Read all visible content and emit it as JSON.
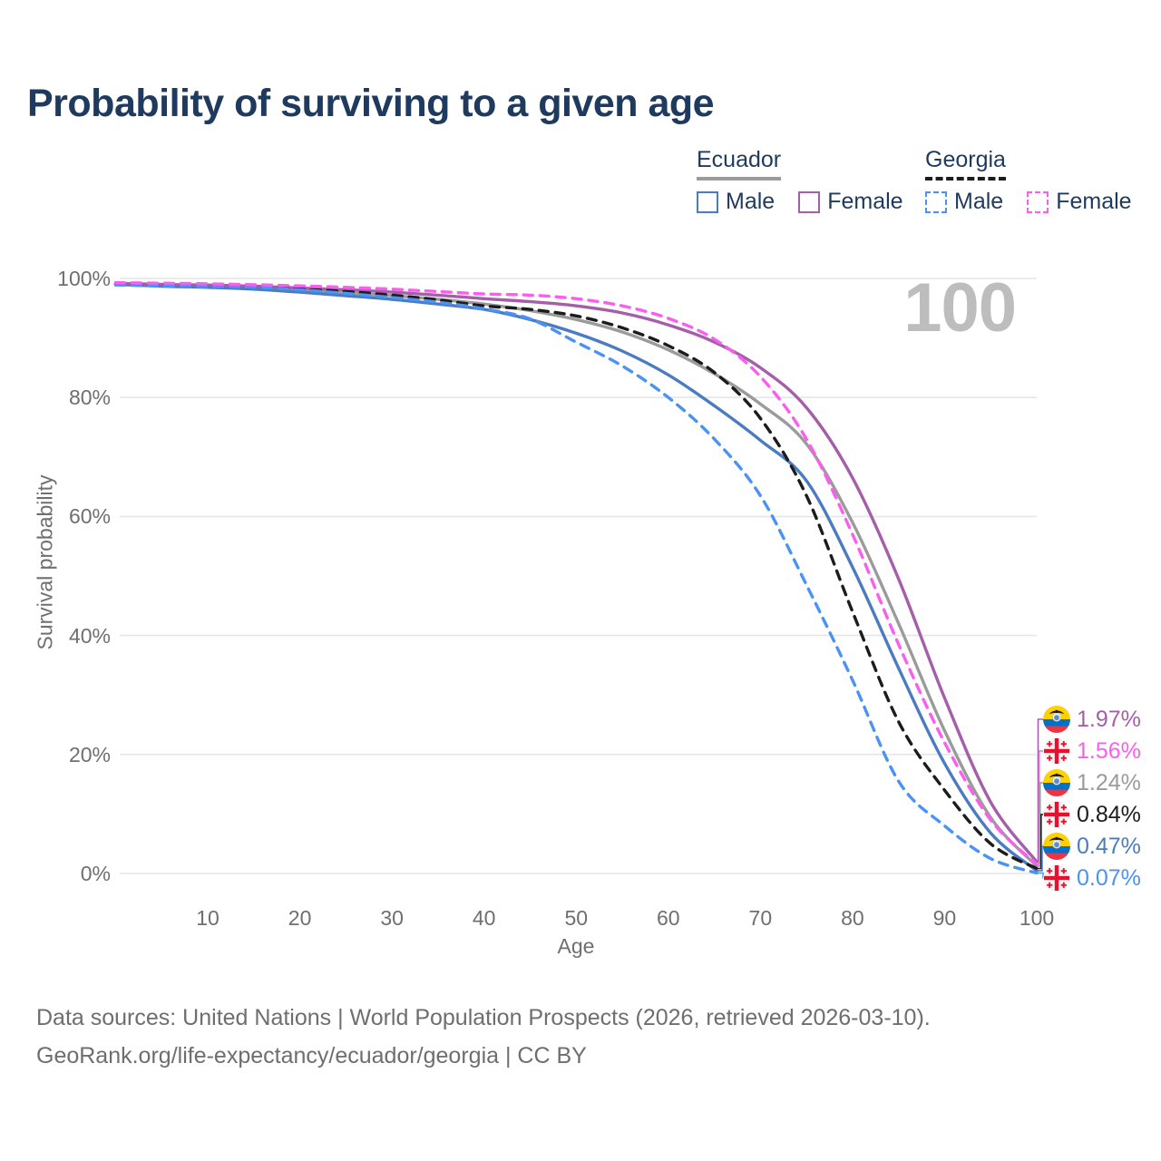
{
  "title": "Probability of surviving to a given age",
  "watermark": "100",
  "legend": {
    "groups": [
      {
        "id": "ecuador",
        "label": "Ecuador",
        "underline_color": "#9b9b9b",
        "underline_style": "solid",
        "items": [
          {
            "label": "Male",
            "color": "#4b7bc0",
            "dashed": false
          },
          {
            "label": "Female",
            "color": "#a55fa8",
            "dashed": false
          }
        ]
      },
      {
        "id": "georgia",
        "label": "Georgia",
        "underline_color": "#1c1c1c",
        "underline_style": "dashed",
        "items": [
          {
            "label": "Male",
            "color": "#4b92f5",
            "dashed": true
          },
          {
            "label": "Female",
            "color": "#fb5dee",
            "dashed": true
          }
        ]
      }
    ]
  },
  "end_labels": [
    {
      "series_id": "ec-female",
      "flag": "ecuador-flag",
      "value": "1.97%",
      "color": "#a55fa8"
    },
    {
      "series_id": "ge-female",
      "flag": "georgia-flag",
      "value": "1.56%",
      "color": "#fb5dee"
    },
    {
      "series_id": "ec-both",
      "flag": "ecuador-flag",
      "value": "1.24%",
      "color": "#9b9b9b"
    },
    {
      "series_id": "ge-both",
      "flag": "georgia-flag",
      "value": "0.84%",
      "color": "#1c1c1c"
    },
    {
      "series_id": "ec-male",
      "flag": "ecuador-flag",
      "value": "0.47%",
      "color": "#4b7bc0"
    },
    {
      "series_id": "ge-male",
      "flag": "georgia-flag",
      "value": "0.07%",
      "color": "#4b92f5"
    }
  ],
  "footer": {
    "line1": "Data sources: United Nations | World Population Prospects (2026, retrieved 2026-03-10).",
    "line2": "GeoRank.org/life-expectancy/ecuador/georgia | CC BY"
  },
  "chart_data": {
    "type": "line",
    "title": "Probability of surviving to a given age",
    "xlabel": "Age",
    "ylabel": "Survival probability",
    "xlim": [
      0,
      100
    ],
    "ylim": [
      0,
      100
    ],
    "grid": "horizontal",
    "y_ticks": [
      {
        "value": 0,
        "label": "0%"
      },
      {
        "value": 20,
        "label": "20%"
      },
      {
        "value": 40,
        "label": "40%"
      },
      {
        "value": 60,
        "label": "60%"
      },
      {
        "value": 80,
        "label": "80%"
      },
      {
        "value": 100,
        "label": "100%"
      }
    ],
    "x_ticks": [
      {
        "value": 10,
        "label": "10"
      },
      {
        "value": 20,
        "label": "20"
      },
      {
        "value": 30,
        "label": "30"
      },
      {
        "value": 40,
        "label": "40"
      },
      {
        "value": 50,
        "label": "50"
      },
      {
        "value": 60,
        "label": "60"
      },
      {
        "value": 70,
        "label": "70"
      },
      {
        "value": 80,
        "label": "80"
      },
      {
        "value": 90,
        "label": "90"
      },
      {
        "value": 100,
        "label": "100"
      }
    ],
    "x": [
      0,
      5,
      10,
      15,
      20,
      25,
      30,
      35,
      40,
      45,
      50,
      55,
      60,
      65,
      70,
      75,
      80,
      85,
      90,
      95,
      100
    ],
    "series": [
      {
        "id": "ec-both",
        "name": "Ecuador Both sexes",
        "country": "Ecuador",
        "sex": "Both",
        "color": "#9b9b9b",
        "dashed": false,
        "values": [
          99.1,
          98.85,
          98.7,
          98.45,
          98.05,
          97.6,
          97.1,
          96.5,
          95.7,
          94.6,
          93.1,
          91.0,
          88.0,
          84.0,
          78.9,
          72.2,
          59.0,
          42.0,
          24.0,
          9.4,
          1.24
        ]
      },
      {
        "id": "ec-male",
        "name": "Ecuador Male",
        "country": "Ecuador",
        "sex": "Male",
        "color": "#4b7bc0",
        "dashed": false,
        "values": [
          99.0,
          98.7,
          98.5,
          98.2,
          97.7,
          97.1,
          96.5,
          95.7,
          94.8,
          93.1,
          90.8,
          87.8,
          83.8,
          78.6,
          72.8,
          66.0,
          51.5,
          34.5,
          18.5,
          6.8,
          0.47
        ]
      },
      {
        "id": "ec-female",
        "name": "Ecuador Female",
        "country": "Ecuador",
        "sex": "Female",
        "color": "#a55fa8",
        "dashed": false,
        "values": [
          99.2,
          99.0,
          98.9,
          98.7,
          98.4,
          98.1,
          97.7,
          97.2,
          96.6,
          96.1,
          95.4,
          94.2,
          92.2,
          89.3,
          85.0,
          78.3,
          66.5,
          49.5,
          29.5,
          12.0,
          1.97
        ]
      },
      {
        "id": "ge-both",
        "name": "Georgia Both sexes",
        "country": "Georgia",
        "sex": "Both",
        "color": "#1c1c1c",
        "dashed": true,
        "values": [
          99.0,
          98.85,
          98.7,
          98.5,
          98.2,
          97.8,
          97.2,
          96.4,
          95.4,
          94.8,
          93.7,
          91.7,
          88.7,
          84.2,
          76.5,
          63.5,
          44.0,
          25.5,
          14.0,
          5.0,
          0.84
        ]
      },
      {
        "id": "ge-male",
        "name": "Georgia Male",
        "country": "Georgia",
        "sex": "Male",
        "color": "#4b92f5",
        "dashed": true,
        "values": [
          98.9,
          98.75,
          98.65,
          98.5,
          98.1,
          97.5,
          96.8,
          96.0,
          94.9,
          93.2,
          89.3,
          85.3,
          80.0,
          73.0,
          63.5,
          48.5,
          32.5,
          15.5,
          8.0,
          2.5,
          0.07
        ]
      },
      {
        "id": "ge-female",
        "name": "Georgia Female",
        "country": "Georgia",
        "sex": "Female",
        "color": "#fb5dee",
        "dashed": true,
        "values": [
          99.3,
          99.2,
          99.1,
          98.95,
          98.75,
          98.5,
          98.2,
          97.8,
          97.4,
          97.2,
          96.6,
          95.4,
          93.3,
          89.8,
          83.5,
          73.0,
          57.0,
          38.5,
          22.0,
          9.0,
          1.56
        ]
      }
    ]
  }
}
